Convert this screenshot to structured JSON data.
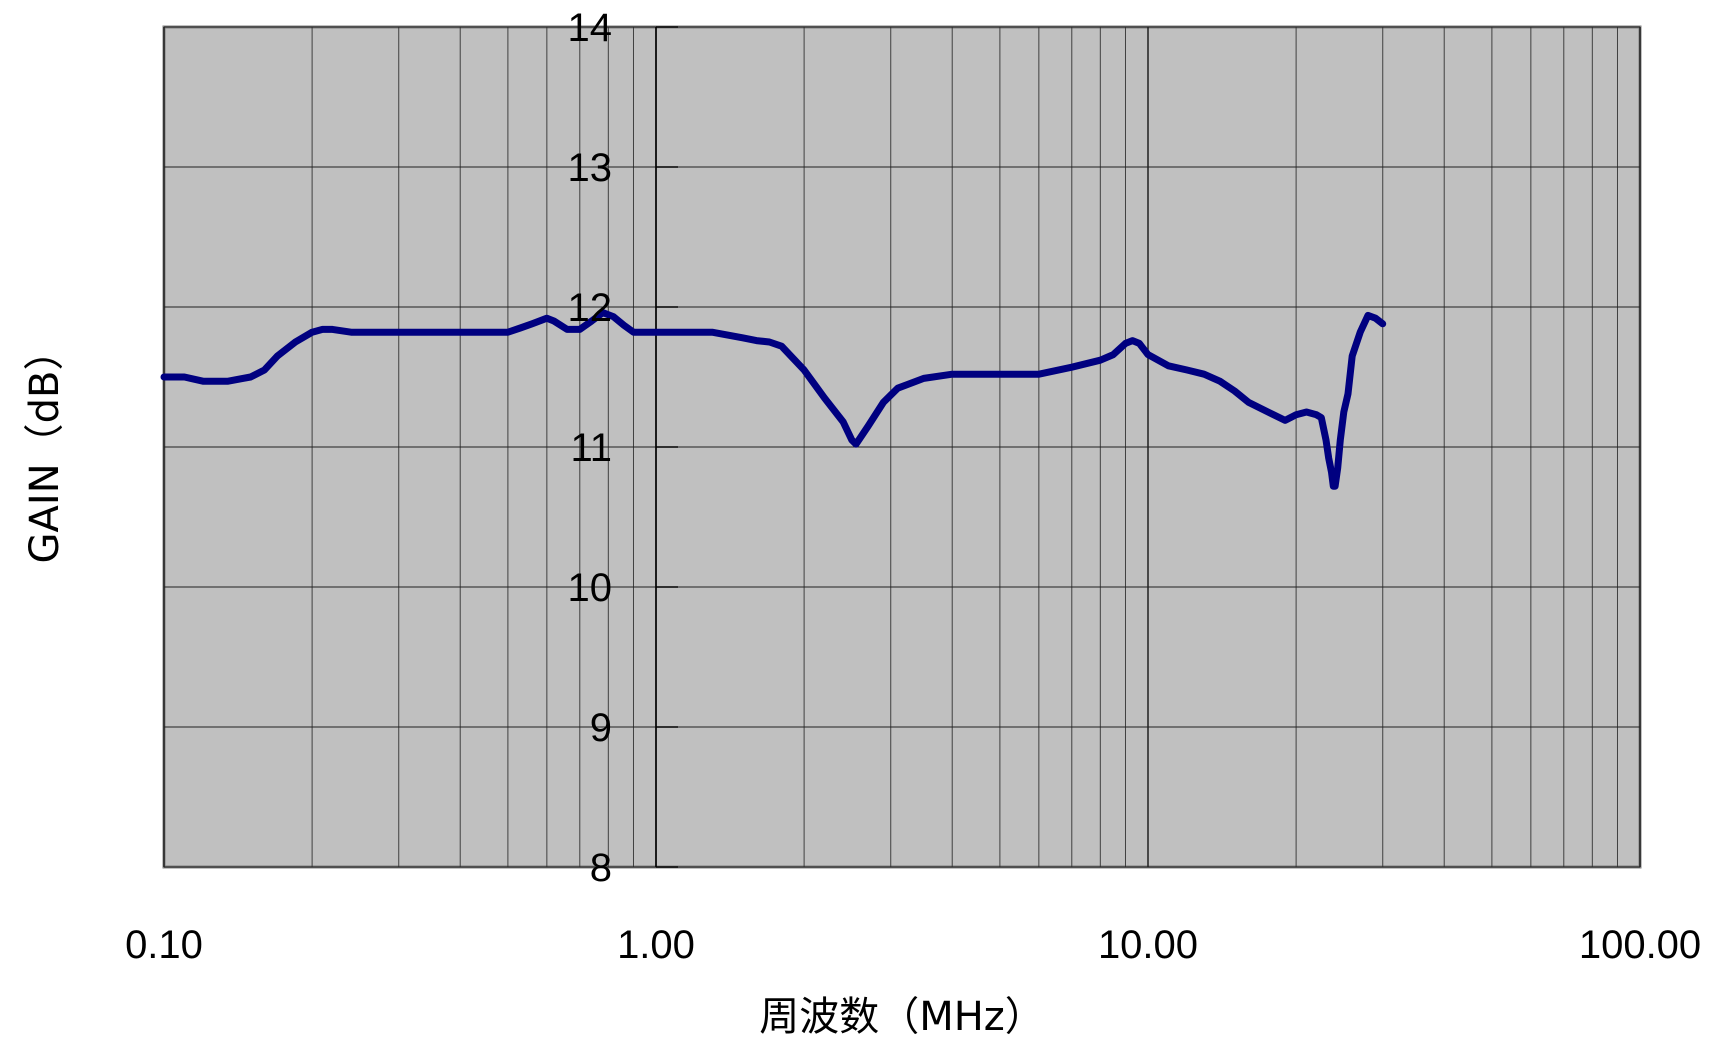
{
  "chart_data": {
    "type": "line",
    "title": "",
    "xlabel": "周波数（MHz）",
    "ylabel": "GAIN（dB）",
    "x_scale": "log",
    "xlim": [
      0.1,
      100
    ],
    "ylim": [
      8,
      14
    ],
    "x_ticks": [
      0.1,
      1,
      10,
      100
    ],
    "x_tick_labels": [
      "0.10",
      "1.00",
      "10.00",
      "100.00"
    ],
    "y_ticks": [
      8,
      9,
      10,
      11,
      12,
      13,
      14
    ],
    "y_tick_labels": [
      "8",
      "9",
      "10",
      "11",
      "12",
      "13",
      "14"
    ],
    "grid": true,
    "plot_background": "#c0c0c0",
    "line_color": "#000080",
    "series": [
      {
        "x": [
          0.1,
          0.11,
          0.12,
          0.135,
          0.15,
          0.16,
          0.17,
          0.185,
          0.2,
          0.21,
          0.22,
          0.24,
          0.3,
          0.4,
          0.5,
          0.53,
          0.56,
          0.6,
          0.62,
          0.66,
          0.7,
          0.74,
          0.78,
          0.82,
          0.86,
          0.9,
          1.0,
          1.15,
          1.3,
          1.5,
          1.6,
          1.7,
          1.8,
          2.0,
          2.2,
          2.4,
          2.5,
          2.55,
          2.7,
          2.9,
          3.1,
          3.5,
          4.0,
          5.0,
          6.0,
          7.0,
          8.0,
          8.5,
          9.0,
          9.3,
          9.6,
          10.0,
          11.0,
          12.0,
          13.0,
          14.0,
          15.0,
          16.0,
          18.0,
          19.0,
          20.0,
          21.0,
          22.0,
          22.5,
          23.0,
          23.3,
          23.6,
          23.8,
          24.0,
          24.3,
          24.6,
          25.0,
          25.5,
          26.0,
          27.0,
          28.0,
          29.0,
          30.0
        ],
        "y": [
          11.5,
          11.5,
          11.47,
          11.47,
          11.5,
          11.55,
          11.65,
          11.75,
          11.82,
          11.84,
          11.84,
          11.82,
          11.82,
          11.82,
          11.82,
          11.85,
          11.88,
          11.92,
          11.9,
          11.84,
          11.84,
          11.9,
          11.96,
          11.93,
          11.87,
          11.82,
          11.82,
          11.82,
          11.82,
          11.78,
          11.76,
          11.75,
          11.72,
          11.55,
          11.35,
          11.18,
          11.05,
          11.02,
          11.15,
          11.32,
          11.42,
          11.49,
          11.52,
          11.52,
          11.52,
          11.57,
          11.62,
          11.66,
          11.74,
          11.76,
          11.74,
          11.66,
          11.58,
          11.55,
          11.52,
          11.47,
          11.4,
          11.32,
          11.23,
          11.19,
          11.23,
          11.25,
          11.23,
          11.21,
          11.05,
          10.92,
          10.82,
          10.72,
          10.72,
          10.85,
          11.05,
          11.25,
          11.38,
          11.65,
          11.82,
          11.94,
          11.92,
          11.88
        ]
      }
    ]
  }
}
